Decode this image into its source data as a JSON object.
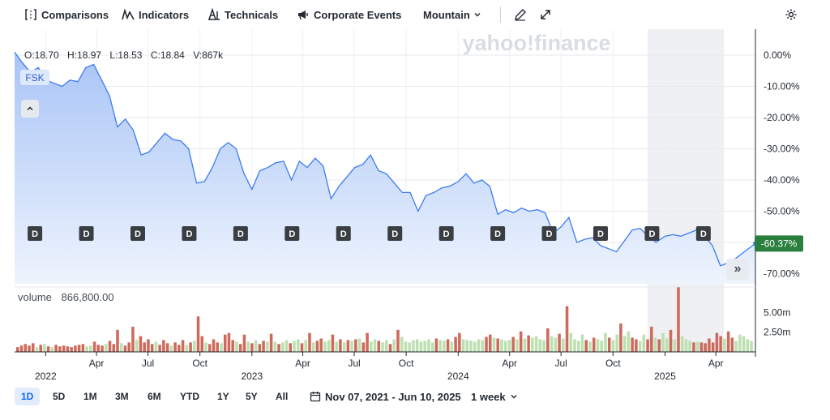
{
  "toolbar": {
    "comparisons": "Comparisons",
    "indicators": "Indicators",
    "technicals": "Technicals",
    "corporate_events": "Corporate Events",
    "chart_style": "Mountain",
    "icons": [
      "comparisons-icon",
      "indicators-icon",
      "technicals-icon",
      "corporate-events-icon",
      "chevron-down-icon",
      "draw-icon",
      "fullscreen-icon",
      "settings-icon"
    ]
  },
  "watermark": "yahoo!finance",
  "ohlc": {
    "open": "O:18.70",
    "high": "H:18.97",
    "low": "L:18.53",
    "close": "C:18.84",
    "volume": "V:867k"
  },
  "symbol": "FSK",
  "volume_label": "volume",
  "volume_value": "866,800.00",
  "last_change": "-60.37%",
  "range_buttons": [
    "1D",
    "5D",
    "1M",
    "3M",
    "6M",
    "YTD",
    "1Y",
    "5Y",
    "All"
  ],
  "active_range": "1D",
  "date_range": "Nov 07, 2021 - Jun 10, 2025",
  "interval": "1 week",
  "colors": {
    "line": "#3d7cf0",
    "area_top": "#a8c4f6",
    "area_bottom": "#eef4fd",
    "vol_up": "#bde0b0",
    "vol_down": "#cd6a5c",
    "badge": "#3a3d42",
    "last_badge": "#2a7f3e"
  },
  "chart_data": {
    "type": "area",
    "x_range": [
      "2021-11-07",
      "2025-06-10"
    ],
    "y_unit": "% change",
    "ylim": [
      -75,
      3
    ],
    "y_ticks": [
      "0.00%",
      "-10.00%",
      "-20.00%",
      "-30.00%",
      "-40.00%",
      "-50.00%",
      "-60.00%",
      "-70.00%"
    ],
    "x_tick_labels": [
      "2022",
      "Apr",
      "Jul",
      "Oct",
      "2023",
      "Apr",
      "Jul",
      "Oct",
      "2024",
      "Apr",
      "Jul",
      "Oct",
      "2025",
      "Apr"
    ],
    "x_tick_dates": [
      "2022-01-01",
      "2022-04-01",
      "2022-07-01",
      "2022-10-01",
      "2023-01-01",
      "2023-04-01",
      "2023-07-01",
      "2023-10-01",
      "2024-01-01",
      "2024-04-01",
      "2024-07-01",
      "2024-10-01",
      "2025-01-01",
      "2025-04-01"
    ],
    "series": [
      {
        "points": [
          [
            "2021-11-07",
            1.0
          ],
          [
            "2021-11-21",
            -2.5
          ],
          [
            "2021-12-05",
            -5.5
          ],
          [
            "2021-12-19",
            -4.0
          ],
          [
            "2022-01-02",
            -8.0
          ],
          [
            "2022-01-16",
            -9.0
          ],
          [
            "2022-01-30",
            -10.0
          ],
          [
            "2022-02-13",
            -8.0
          ],
          [
            "2022-02-27",
            -8.5
          ],
          [
            "2022-03-13",
            -4.0
          ],
          [
            "2022-03-27",
            -3.0
          ],
          [
            "2022-04-10",
            -8.0
          ],
          [
            "2022-04-24",
            -13.0
          ],
          [
            "2022-05-08",
            -23.0
          ],
          [
            "2022-05-22",
            -20.5
          ],
          [
            "2022-06-05",
            -24.0
          ],
          [
            "2022-06-19",
            -32.0
          ],
          [
            "2022-07-03",
            -31.0
          ],
          [
            "2022-07-17",
            -28.0
          ],
          [
            "2022-07-31",
            -25.0
          ],
          [
            "2022-08-14",
            -27.0
          ],
          [
            "2022-08-28",
            -27.5
          ],
          [
            "2022-09-11",
            -30.0
          ],
          [
            "2022-09-25",
            -41.0
          ],
          [
            "2022-10-09",
            -40.5
          ],
          [
            "2022-10-23",
            -36.0
          ],
          [
            "2022-11-06",
            -30.0
          ],
          [
            "2022-11-20",
            -28.0
          ],
          [
            "2022-12-04",
            -30.0
          ],
          [
            "2022-12-18",
            -38.0
          ],
          [
            "2023-01-01",
            -43.0
          ],
          [
            "2023-01-15",
            -37.0
          ],
          [
            "2023-01-29",
            -36.0
          ],
          [
            "2023-02-12",
            -34.5
          ],
          [
            "2023-02-26",
            -34.0
          ],
          [
            "2023-03-12",
            -40.0
          ],
          [
            "2023-03-26",
            -34.0
          ],
          [
            "2023-04-09",
            -36.0
          ],
          [
            "2023-04-23",
            -33.0
          ],
          [
            "2023-05-07",
            -35.5
          ],
          [
            "2023-05-21",
            -46.0
          ],
          [
            "2023-06-04",
            -42.0
          ],
          [
            "2023-06-18",
            -39.0
          ],
          [
            "2023-07-02",
            -36.0
          ],
          [
            "2023-07-16",
            -35.0
          ],
          [
            "2023-07-30",
            -32.0
          ],
          [
            "2023-08-13",
            -37.0
          ],
          [
            "2023-08-27",
            -38.0
          ],
          [
            "2023-09-10",
            -41.0
          ],
          [
            "2023-09-24",
            -44.0
          ],
          [
            "2023-10-08",
            -44.0
          ],
          [
            "2023-10-22",
            -50.0
          ],
          [
            "2023-11-05",
            -45.0
          ],
          [
            "2023-11-19",
            -44.0
          ],
          [
            "2023-12-03",
            -42.5
          ],
          [
            "2023-12-17",
            -42.0
          ],
          [
            "2024-01-01",
            -40.5
          ],
          [
            "2024-01-15",
            -38.0
          ],
          [
            "2024-01-29",
            -41.0
          ],
          [
            "2024-02-12",
            -40.0
          ],
          [
            "2024-02-26",
            -42.0
          ],
          [
            "2024-03-11",
            -51.0
          ],
          [
            "2024-03-25",
            -49.5
          ],
          [
            "2024-04-08",
            -50.5
          ],
          [
            "2024-04-22",
            -49.0
          ],
          [
            "2024-05-06",
            -50.0
          ],
          [
            "2024-05-20",
            -49.5
          ],
          [
            "2024-06-03",
            -50.5
          ],
          [
            "2024-06-17",
            -57.0
          ],
          [
            "2024-07-01",
            -55.0
          ],
          [
            "2024-07-15",
            -52.0
          ],
          [
            "2024-07-29",
            -60.0
          ],
          [
            "2024-08-12",
            -59.0
          ],
          [
            "2024-08-26",
            -58.5
          ],
          [
            "2024-09-09",
            -61.0
          ],
          [
            "2024-09-23",
            -62.0
          ],
          [
            "2024-10-07",
            -63.0
          ],
          [
            "2024-10-21",
            -59.5
          ],
          [
            "2024-11-04",
            -56.0
          ],
          [
            "2024-11-18",
            -55.5
          ],
          [
            "2024-12-02",
            -58.0
          ],
          [
            "2024-12-16",
            -60.0
          ],
          [
            "2025-01-01",
            -58.0
          ],
          [
            "2025-01-15",
            -57.5
          ],
          [
            "2025-01-29",
            -58.0
          ],
          [
            "2025-02-12",
            -57.0
          ],
          [
            "2025-02-26",
            -56.0
          ],
          [
            "2025-03-12",
            -58.0
          ],
          [
            "2025-03-26",
            -61.0
          ],
          [
            "2025-04-09",
            -67.5
          ],
          [
            "2025-04-23",
            -66.5
          ],
          [
            "2025-05-07",
            -65.0
          ],
          [
            "2025-05-21",
            -63.0
          ],
          [
            "2025-06-10",
            -60.37
          ]
        ]
      }
    ],
    "dividend_markers": [
      "2021-12-13",
      "2022-03-14",
      "2022-06-13",
      "2022-09-12",
      "2022-12-12",
      "2023-03-13",
      "2023-06-12",
      "2023-09-11",
      "2023-12-11",
      "2024-03-11",
      "2024-06-10",
      "2024-09-09",
      "2024-12-09",
      "2025-03-10"
    ],
    "dividend_label": "D",
    "shaded_period": [
      "2024-12-01",
      "2025-04-15"
    ],
    "volume": {
      "y_ticks": [
        "5.00m",
        "2.50m"
      ],
      "ylim": [
        0,
        7.0
      ],
      "unit": "millions",
      "bars": [
        [
          0.6,
          "d"
        ],
        [
          0.8,
          "d"
        ],
        [
          1.0,
          "d"
        ],
        [
          0.8,
          "d"
        ],
        [
          1.1,
          "d"
        ],
        [
          0.6,
          "u"
        ],
        [
          0.9,
          "d"
        ],
        [
          1.0,
          "u"
        ],
        [
          0.7,
          "d"
        ],
        [
          0.6,
          "u"
        ],
        [
          0.9,
          "d"
        ],
        [
          0.7,
          "d"
        ],
        [
          0.8,
          "d"
        ],
        [
          0.7,
          "d"
        ],
        [
          0.6,
          "d"
        ],
        [
          0.8,
          "d"
        ],
        [
          0.9,
          "d"
        ],
        [
          1.0,
          "d"
        ],
        [
          0.7,
          "u"
        ],
        [
          0.8,
          "u"
        ],
        [
          1.3,
          "d"
        ],
        [
          0.9,
          "d"
        ],
        [
          0.8,
          "d"
        ],
        [
          1.0,
          "u"
        ],
        [
          1.4,
          "d"
        ],
        [
          1.0,
          "d"
        ],
        [
          2.8,
          "d"
        ],
        [
          1.1,
          "u"
        ],
        [
          0.8,
          "d"
        ],
        [
          1.2,
          "d"
        ],
        [
          3.2,
          "d"
        ],
        [
          1.5,
          "u"
        ],
        [
          2.0,
          "d"
        ],
        [
          1.2,
          "d"
        ],
        [
          1.6,
          "d"
        ],
        [
          1.0,
          "d"
        ],
        [
          1.3,
          "u"
        ],
        [
          0.9,
          "d"
        ],
        [
          1.5,
          "d"
        ],
        [
          1.1,
          "d"
        ],
        [
          0.8,
          "u"
        ],
        [
          1.2,
          "d"
        ],
        [
          0.9,
          "d"
        ],
        [
          1.5,
          "d"
        ],
        [
          0.9,
          "u"
        ],
        [
          1.2,
          "d"
        ],
        [
          1.4,
          "u"
        ],
        [
          4.5,
          "d"
        ],
        [
          2.0,
          "d"
        ],
        [
          1.2,
          "u"
        ],
        [
          1.0,
          "d"
        ],
        [
          1.6,
          "d"
        ],
        [
          1.2,
          "d"
        ],
        [
          1.1,
          "u"
        ],
        [
          2.2,
          "d"
        ],
        [
          2.4,
          "d"
        ],
        [
          1.5,
          "d"
        ],
        [
          1.3,
          "u"
        ],
        [
          1.0,
          "d"
        ],
        [
          2.2,
          "d"
        ],
        [
          1.3,
          "u"
        ],
        [
          1.1,
          "d"
        ],
        [
          1.5,
          "u"
        ],
        [
          1.0,
          "d"
        ],
        [
          1.4,
          "d"
        ],
        [
          1.3,
          "u"
        ],
        [
          2.3,
          "d"
        ],
        [
          1.3,
          "u"
        ],
        [
          1.0,
          "d"
        ],
        [
          1.2,
          "u"
        ],
        [
          1.5,
          "u"
        ],
        [
          1.1,
          "d"
        ],
        [
          1.4,
          "u"
        ],
        [
          1.6,
          "u"
        ],
        [
          1.1,
          "d"
        ],
        [
          1.5,
          "u"
        ],
        [
          2.4,
          "d"
        ],
        [
          1.2,
          "u"
        ],
        [
          1.4,
          "d"
        ],
        [
          1.7,
          "d"
        ],
        [
          1.3,
          "u"
        ],
        [
          1.5,
          "u"
        ],
        [
          2.2,
          "d"
        ],
        [
          1.3,
          "u"
        ],
        [
          1.6,
          "d"
        ],
        [
          1.2,
          "u"
        ],
        [
          1.5,
          "d"
        ],
        [
          1.4,
          "u"
        ],
        [
          1.6,
          "d"
        ],
        [
          1.7,
          "u"
        ],
        [
          1.2,
          "d"
        ],
        [
          2.4,
          "d"
        ],
        [
          1.3,
          "u"
        ],
        [
          1.6,
          "u"
        ],
        [
          1.4,
          "d"
        ],
        [
          1.2,
          "u"
        ],
        [
          1.5,
          "u"
        ],
        [
          1.0,
          "d"
        ],
        [
          1.6,
          "u"
        ],
        [
          2.8,
          "d"
        ],
        [
          1.9,
          "u"
        ],
        [
          1.3,
          "u"
        ],
        [
          1.2,
          "u"
        ],
        [
          1.5,
          "u"
        ],
        [
          1.6,
          "u"
        ],
        [
          1.3,
          "u"
        ],
        [
          1.4,
          "u"
        ],
        [
          1.6,
          "u"
        ],
        [
          1.2,
          "u"
        ],
        [
          1.7,
          "d"
        ],
        [
          1.5,
          "u"
        ],
        [
          1.4,
          "u"
        ],
        [
          1.6,
          "d"
        ],
        [
          1.3,
          "u"
        ],
        [
          1.9,
          "d"
        ],
        [
          2.4,
          "d"
        ],
        [
          1.6,
          "u"
        ],
        [
          1.5,
          "u"
        ],
        [
          1.4,
          "u"
        ],
        [
          1.3,
          "u"
        ],
        [
          1.6,
          "u"
        ],
        [
          1.5,
          "u"
        ],
        [
          1.9,
          "d"
        ],
        [
          2.2,
          "d"
        ],
        [
          1.8,
          "u"
        ],
        [
          1.7,
          "d"
        ],
        [
          1.6,
          "u"
        ],
        [
          1.4,
          "u"
        ],
        [
          1.5,
          "u"
        ],
        [
          1.9,
          "d"
        ],
        [
          1.6,
          "u"
        ],
        [
          2.6,
          "d"
        ],
        [
          1.7,
          "u"
        ],
        [
          2.1,
          "d"
        ],
        [
          1.8,
          "u"
        ],
        [
          2.0,
          "u"
        ],
        [
          1.6,
          "u"
        ],
        [
          1.5,
          "u"
        ],
        [
          3.0,
          "d"
        ],
        [
          2.0,
          "u"
        ],
        [
          1.8,
          "u"
        ],
        [
          2.3,
          "d"
        ],
        [
          1.7,
          "u"
        ],
        [
          5.8,
          "d"
        ],
        [
          2.4,
          "u"
        ],
        [
          1.6,
          "u"
        ],
        [
          1.4,
          "u"
        ],
        [
          2.2,
          "u"
        ],
        [
          1.5,
          "d"
        ],
        [
          1.3,
          "u"
        ],
        [
          1.8,
          "d"
        ],
        [
          1.6,
          "u"
        ],
        [
          1.4,
          "u"
        ],
        [
          2.4,
          "u"
        ],
        [
          1.8,
          "d"
        ],
        [
          1.5,
          "u"
        ],
        [
          2.2,
          "u"
        ],
        [
          3.6,
          "d"
        ],
        [
          2.0,
          "u"
        ],
        [
          2.6,
          "u"
        ],
        [
          1.8,
          "d"
        ],
        [
          1.6,
          "d"
        ],
        [
          1.4,
          "u"
        ],
        [
          2.2,
          "u"
        ],
        [
          1.6,
          "d"
        ],
        [
          3.2,
          "d"
        ],
        [
          1.8,
          "u"
        ],
        [
          1.6,
          "d"
        ],
        [
          2.4,
          "u"
        ],
        [
          1.7,
          "u"
        ],
        [
          2.8,
          "d"
        ],
        [
          1.6,
          "u"
        ],
        [
          8.2,
          "d"
        ],
        [
          2.0,
          "u"
        ],
        [
          1.6,
          "u"
        ],
        [
          1.4,
          "u"
        ],
        [
          1.2,
          "d"
        ],
        [
          1.3,
          "u"
        ],
        [
          1.2,
          "d"
        ],
        [
          1.1,
          "d"
        ],
        [
          1.7,
          "d"
        ],
        [
          1.2,
          "d"
        ],
        [
          2.4,
          "d"
        ],
        [
          2.0,
          "d"
        ],
        [
          1.7,
          "u"
        ],
        [
          2.6,
          "d"
        ],
        [
          1.8,
          "d"
        ],
        [
          1.4,
          "u"
        ],
        [
          2.2,
          "u"
        ],
        [
          2.0,
          "u"
        ],
        [
          1.6,
          "u"
        ],
        [
          1.4,
          "u"
        ]
      ]
    }
  }
}
